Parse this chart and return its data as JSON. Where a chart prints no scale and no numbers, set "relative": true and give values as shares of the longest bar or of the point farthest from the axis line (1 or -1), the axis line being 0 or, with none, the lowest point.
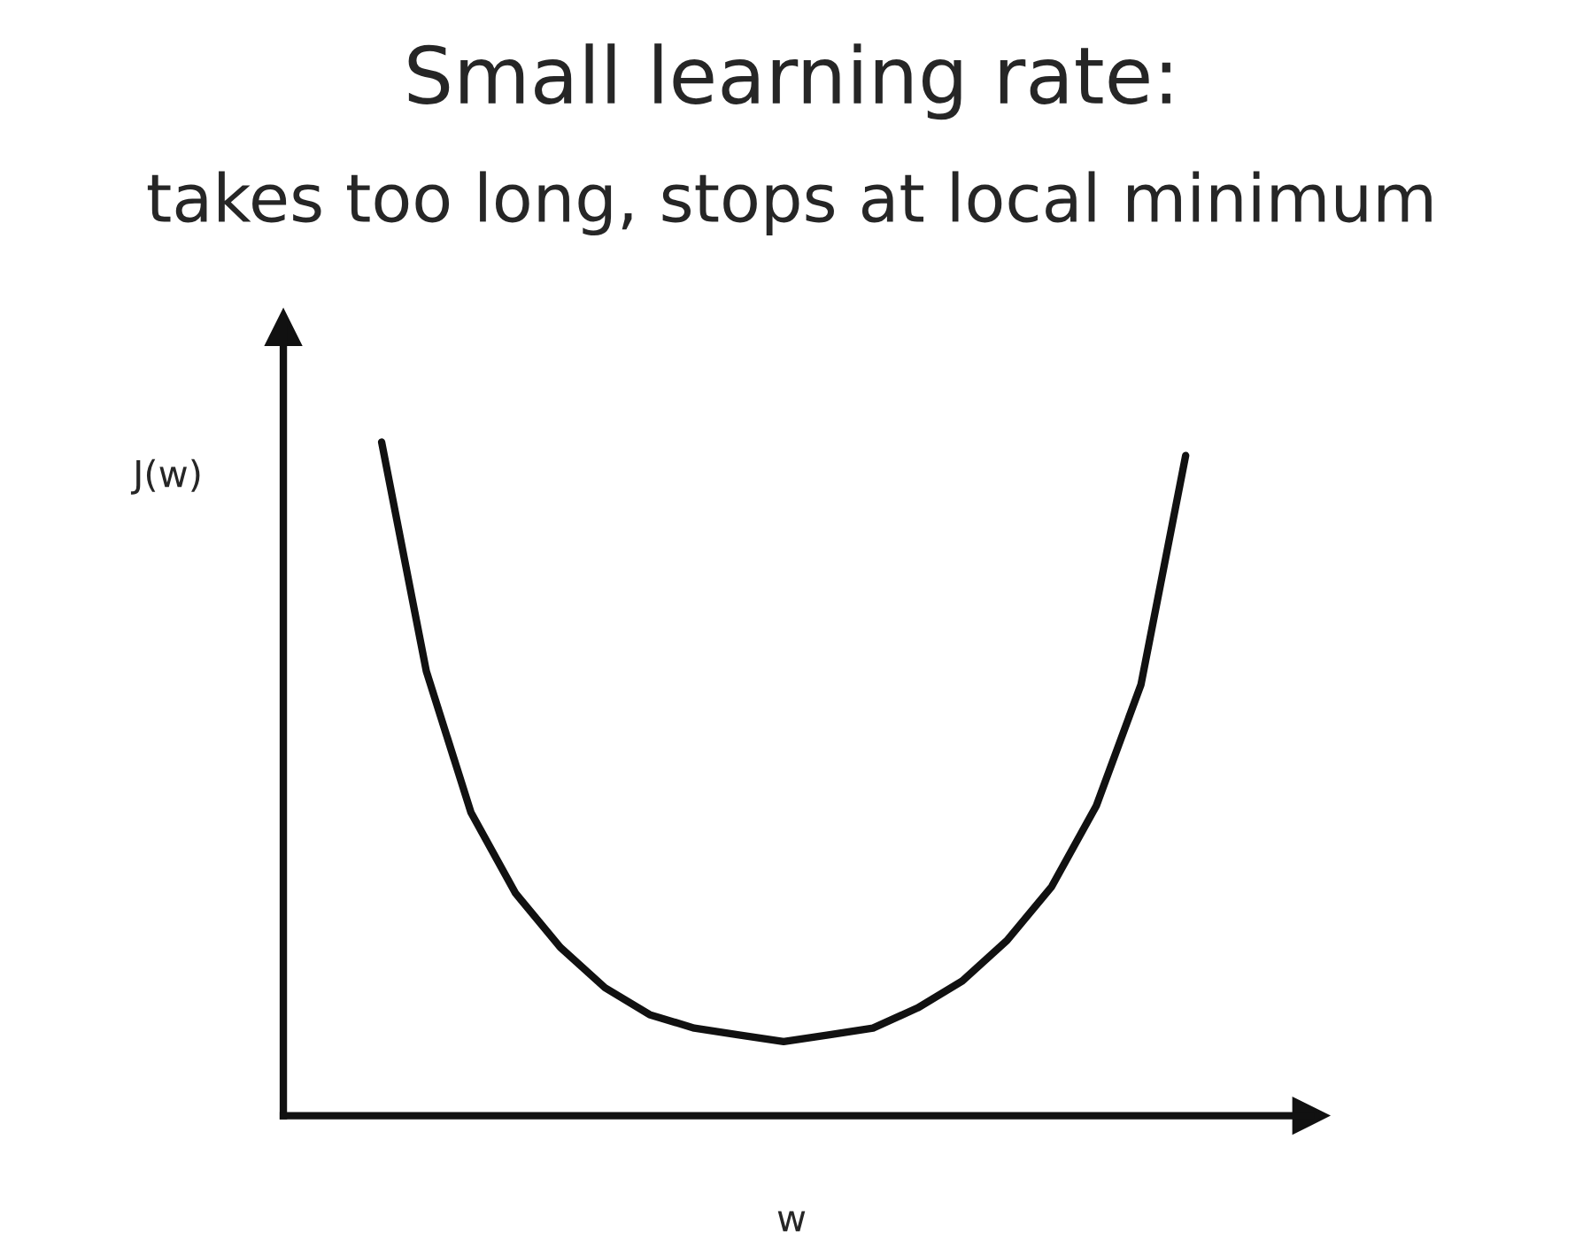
{
  "chart_data": {
    "type": "line",
    "title": "Small learning rate:",
    "subtitle": "takes too long, stops at local minimum",
    "xlabel": "w",
    "ylabel": "J(w)",
    "relative": true,
    "legend": false,
    "categories": [
      null,
      null,
      null,
      null,
      null,
      null,
      null,
      null,
      null,
      null,
      null,
      null,
      null,
      null,
      null,
      null,
      null,
      null,
      null
    ],
    "series": [
      {
        "color": "#111111",
        "values": [
          1.0,
          0.66,
          0.45,
          0.33,
          0.25,
          0.19,
          0.15,
          0.13,
          0.12,
          0.11,
          0.12,
          0.13,
          0.16,
          0.2,
          0.26,
          0.34,
          0.46,
          0.64,
          0.98
        ]
      }
    ]
  }
}
